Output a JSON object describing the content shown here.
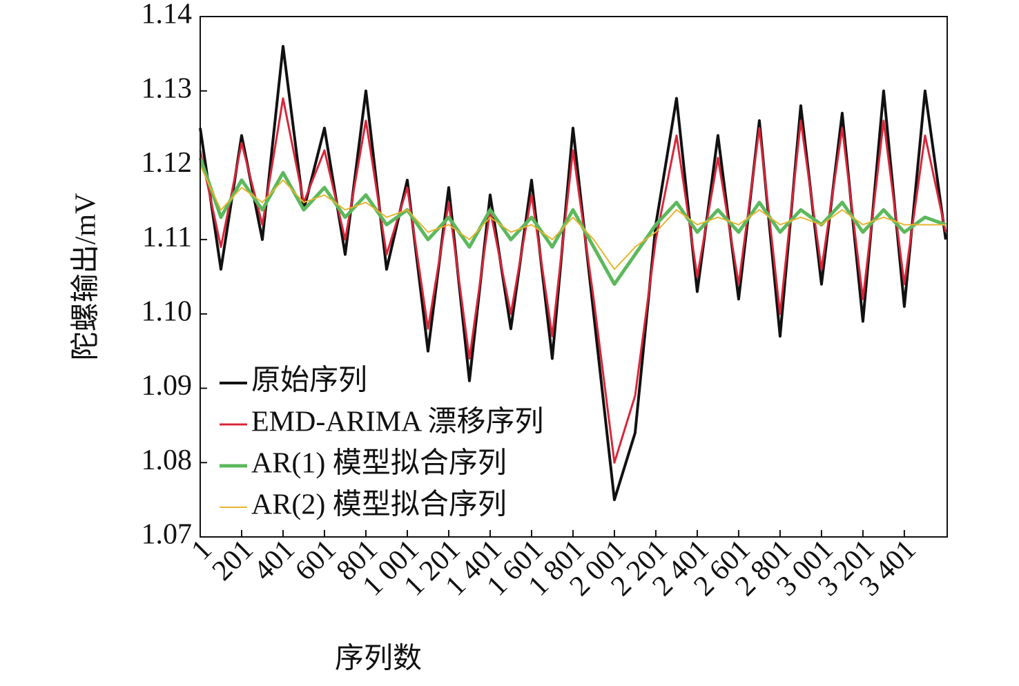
{
  "chart_data": {
    "type": "line",
    "xlabel": "序列数",
    "ylabel": "陀螺输出/mV",
    "x": [
      1,
      101,
      201,
      301,
      401,
      501,
      601,
      701,
      801,
      901,
      1001,
      1101,
      1201,
      1301,
      1401,
      1501,
      1601,
      1701,
      1801,
      1901,
      2001,
      2101,
      2201,
      2301,
      2401,
      2501,
      2601,
      2701,
      2801,
      2901,
      3001,
      3101,
      3201,
      3301,
      3401,
      3501,
      3601
    ],
    "series": [
      {
        "name": "原始序列",
        "color": "#111111",
        "width": 4,
        "values": [
          1.125,
          1.106,
          1.124,
          1.11,
          1.136,
          1.114,
          1.125,
          1.108,
          1.13,
          1.106,
          1.118,
          1.095,
          1.117,
          1.091,
          1.116,
          1.098,
          1.118,
          1.094,
          1.125,
          1.1,
          1.075,
          1.084,
          1.112,
          1.129,
          1.103,
          1.124,
          1.102,
          1.126,
          1.097,
          1.128,
          1.104,
          1.127,
          1.099,
          1.13,
          1.101,
          1.13,
          1.11
        ]
      },
      {
        "name": "EMD-ARIMA 漂移序列",
        "color": "#d9263a",
        "width": 3,
        "values": [
          1.122,
          1.109,
          1.123,
          1.112,
          1.129,
          1.115,
          1.122,
          1.11,
          1.126,
          1.108,
          1.117,
          1.098,
          1.115,
          1.094,
          1.114,
          1.1,
          1.116,
          1.097,
          1.122,
          1.102,
          1.08,
          1.089,
          1.11,
          1.124,
          1.105,
          1.121,
          1.104,
          1.125,
          1.1,
          1.126,
          1.106,
          1.125,
          1.102,
          1.126,
          1.104,
          1.124,
          1.111
        ]
      },
      {
        "name": "AR(1) 模型拟合序列",
        "color": "#5cb85c",
        "width": 5,
        "values": [
          1.121,
          1.113,
          1.118,
          1.114,
          1.119,
          1.114,
          1.117,
          1.113,
          1.116,
          1.112,
          1.114,
          1.11,
          1.113,
          1.109,
          1.114,
          1.11,
          1.113,
          1.109,
          1.114,
          1.109,
          1.104,
          1.108,
          1.112,
          1.115,
          1.111,
          1.114,
          1.111,
          1.115,
          1.111,
          1.114,
          1.112,
          1.115,
          1.111,
          1.114,
          1.111,
          1.113,
          1.112
        ]
      },
      {
        "name": "AR(2) 模型拟合序列",
        "color": "#e8b430",
        "width": 2,
        "values": [
          1.12,
          1.114,
          1.117,
          1.115,
          1.118,
          1.115,
          1.116,
          1.114,
          1.115,
          1.113,
          1.114,
          1.111,
          1.112,
          1.11,
          1.113,
          1.111,
          1.112,
          1.11,
          1.113,
          1.11,
          1.106,
          1.109,
          1.111,
          1.114,
          1.112,
          1.113,
          1.112,
          1.114,
          1.112,
          1.113,
          1.112,
          1.114,
          1.112,
          1.113,
          1.112,
          1.112,
          1.112
        ]
      }
    ],
    "xlim": [
      1,
      3608
    ],
    "xticks": [
      1,
      201,
      401,
      601,
      801,
      {
        "value": 1001,
        "label": "1 001"
      },
      {
        "value": 1201,
        "label": "1 201"
      },
      {
        "value": 1401,
        "label": "1 401"
      },
      {
        "value": 1601,
        "label": "1 601"
      },
      {
        "value": 1801,
        "label": "1 801"
      },
      {
        "value": 2001,
        "label": "2 001"
      },
      {
        "value": 2201,
        "label": "2 201"
      },
      {
        "value": 2401,
        "label": "2 401"
      },
      {
        "value": 2601,
        "label": "2 601"
      },
      {
        "value": 2801,
        "label": "2 801"
      },
      {
        "value": 3001,
        "label": "3 001"
      },
      {
        "value": 3201,
        "label": "3 201"
      },
      {
        "value": 3401,
        "label": "3 401"
      }
    ],
    "ylim": [
      1.07,
      1.14
    ],
    "yticks": [
      {
        "value": 1.07,
        "label": "1.07"
      },
      {
        "value": 1.08,
        "label": "1.08"
      },
      {
        "value": 1.09,
        "label": "1.09"
      },
      {
        "value": 1.1,
        "label": "1.10"
      },
      {
        "value": 1.11,
        "label": "1.11"
      },
      {
        "value": 1.12,
        "label": "1.12"
      },
      {
        "value": 1.13,
        "label": "1.13"
      },
      {
        "value": 1.14,
        "label": "1.14"
      }
    ],
    "legend": "lower-left"
  }
}
